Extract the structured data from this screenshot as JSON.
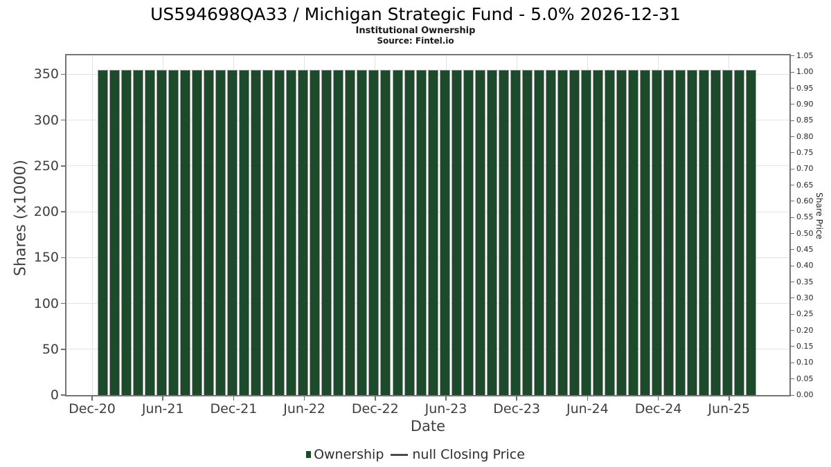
{
  "chart_data": {
    "type": "bar",
    "title": "US594698QA33 / Michigan Strategic Fund - 5.0% 2026-12-31",
    "subtitle": "Institutional Ownership",
    "source": "Source: Fintel.io",
    "xlabel": "Date",
    "ylabel_left": "Shares (x1000)",
    "ylabel_right": "Share Price",
    "categories": [
      "Jan-21",
      "Feb-21",
      "Mar-21",
      "Apr-21",
      "May-21",
      "Jun-21",
      "Jul-21",
      "Aug-21",
      "Sep-21",
      "Oct-21",
      "Nov-21",
      "Dec-21",
      "Jan-22",
      "Feb-22",
      "Mar-22",
      "Apr-22",
      "May-22",
      "Jun-22",
      "Jul-22",
      "Aug-22",
      "Sep-22",
      "Oct-22",
      "Nov-22",
      "Dec-22",
      "Jan-23",
      "Feb-23",
      "Mar-23",
      "Apr-23",
      "May-23",
      "Jun-23",
      "Jul-23",
      "Aug-23",
      "Sep-23",
      "Oct-23",
      "Nov-23",
      "Dec-23",
      "Jan-24",
      "Feb-24",
      "Mar-24",
      "Apr-24",
      "May-24",
      "Jun-24",
      "Jul-24",
      "Aug-24",
      "Sep-24",
      "Oct-24",
      "Nov-24",
      "Dec-24",
      "Jan-25",
      "Feb-25",
      "Mar-25",
      "Apr-25",
      "May-25",
      "Jun-25",
      "Jul-25",
      "Aug-25"
    ],
    "series": [
      {
        "name": "Ownership",
        "type": "bar",
        "color": "#1d4a2b",
        "values": [
          355,
          355,
          355,
          355,
          355,
          355,
          355,
          355,
          355,
          355,
          355,
          355,
          355,
          355,
          355,
          355,
          355,
          355,
          355,
          355,
          355,
          355,
          355,
          355,
          355,
          355,
          355,
          355,
          355,
          355,
          355,
          355,
          355,
          355,
          355,
          355,
          355,
          355,
          355,
          355,
          355,
          355,
          355,
          355,
          355,
          355,
          355,
          355,
          355,
          355,
          355,
          355,
          355,
          355,
          355,
          355
        ]
      },
      {
        "name": "null Closing Price",
        "type": "line",
        "color": "#4a4a4a",
        "values": []
      }
    ],
    "x_tick_labels": [
      "Dec-20",
      "Jun-21",
      "Dec-21",
      "Jun-22",
      "Dec-22",
      "Jun-23",
      "Dec-23",
      "Jun-24",
      "Dec-24",
      "Jun-25"
    ],
    "y_left_ticks": [
      0,
      50,
      100,
      150,
      200,
      250,
      300,
      350
    ],
    "y_right_tick_labels": [
      "0.00",
      "0.05",
      "0.10",
      "0.15",
      "0.20",
      "0.25",
      "0.30",
      "0.35",
      "0.40",
      "0.45",
      "0.50",
      "0.55",
      "0.60",
      "0.65",
      "0.70",
      "0.75",
      "0.80",
      "0.85",
      "0.90",
      "0.95",
      "1.00",
      "1.05"
    ],
    "ylim_left": [
      0,
      370.6
    ],
    "ylim_right": [
      0,
      1.052
    ],
    "grid": true,
    "legend_position": "bottom",
    "colors": {
      "bar": "#1d4a2b",
      "bar_border": "#9b9b9b",
      "grid": "#e2e2e2",
      "frame": "#747474",
      "tick_mark": "#6e6e6e",
      "legend_line": "#4a4a4a"
    }
  }
}
